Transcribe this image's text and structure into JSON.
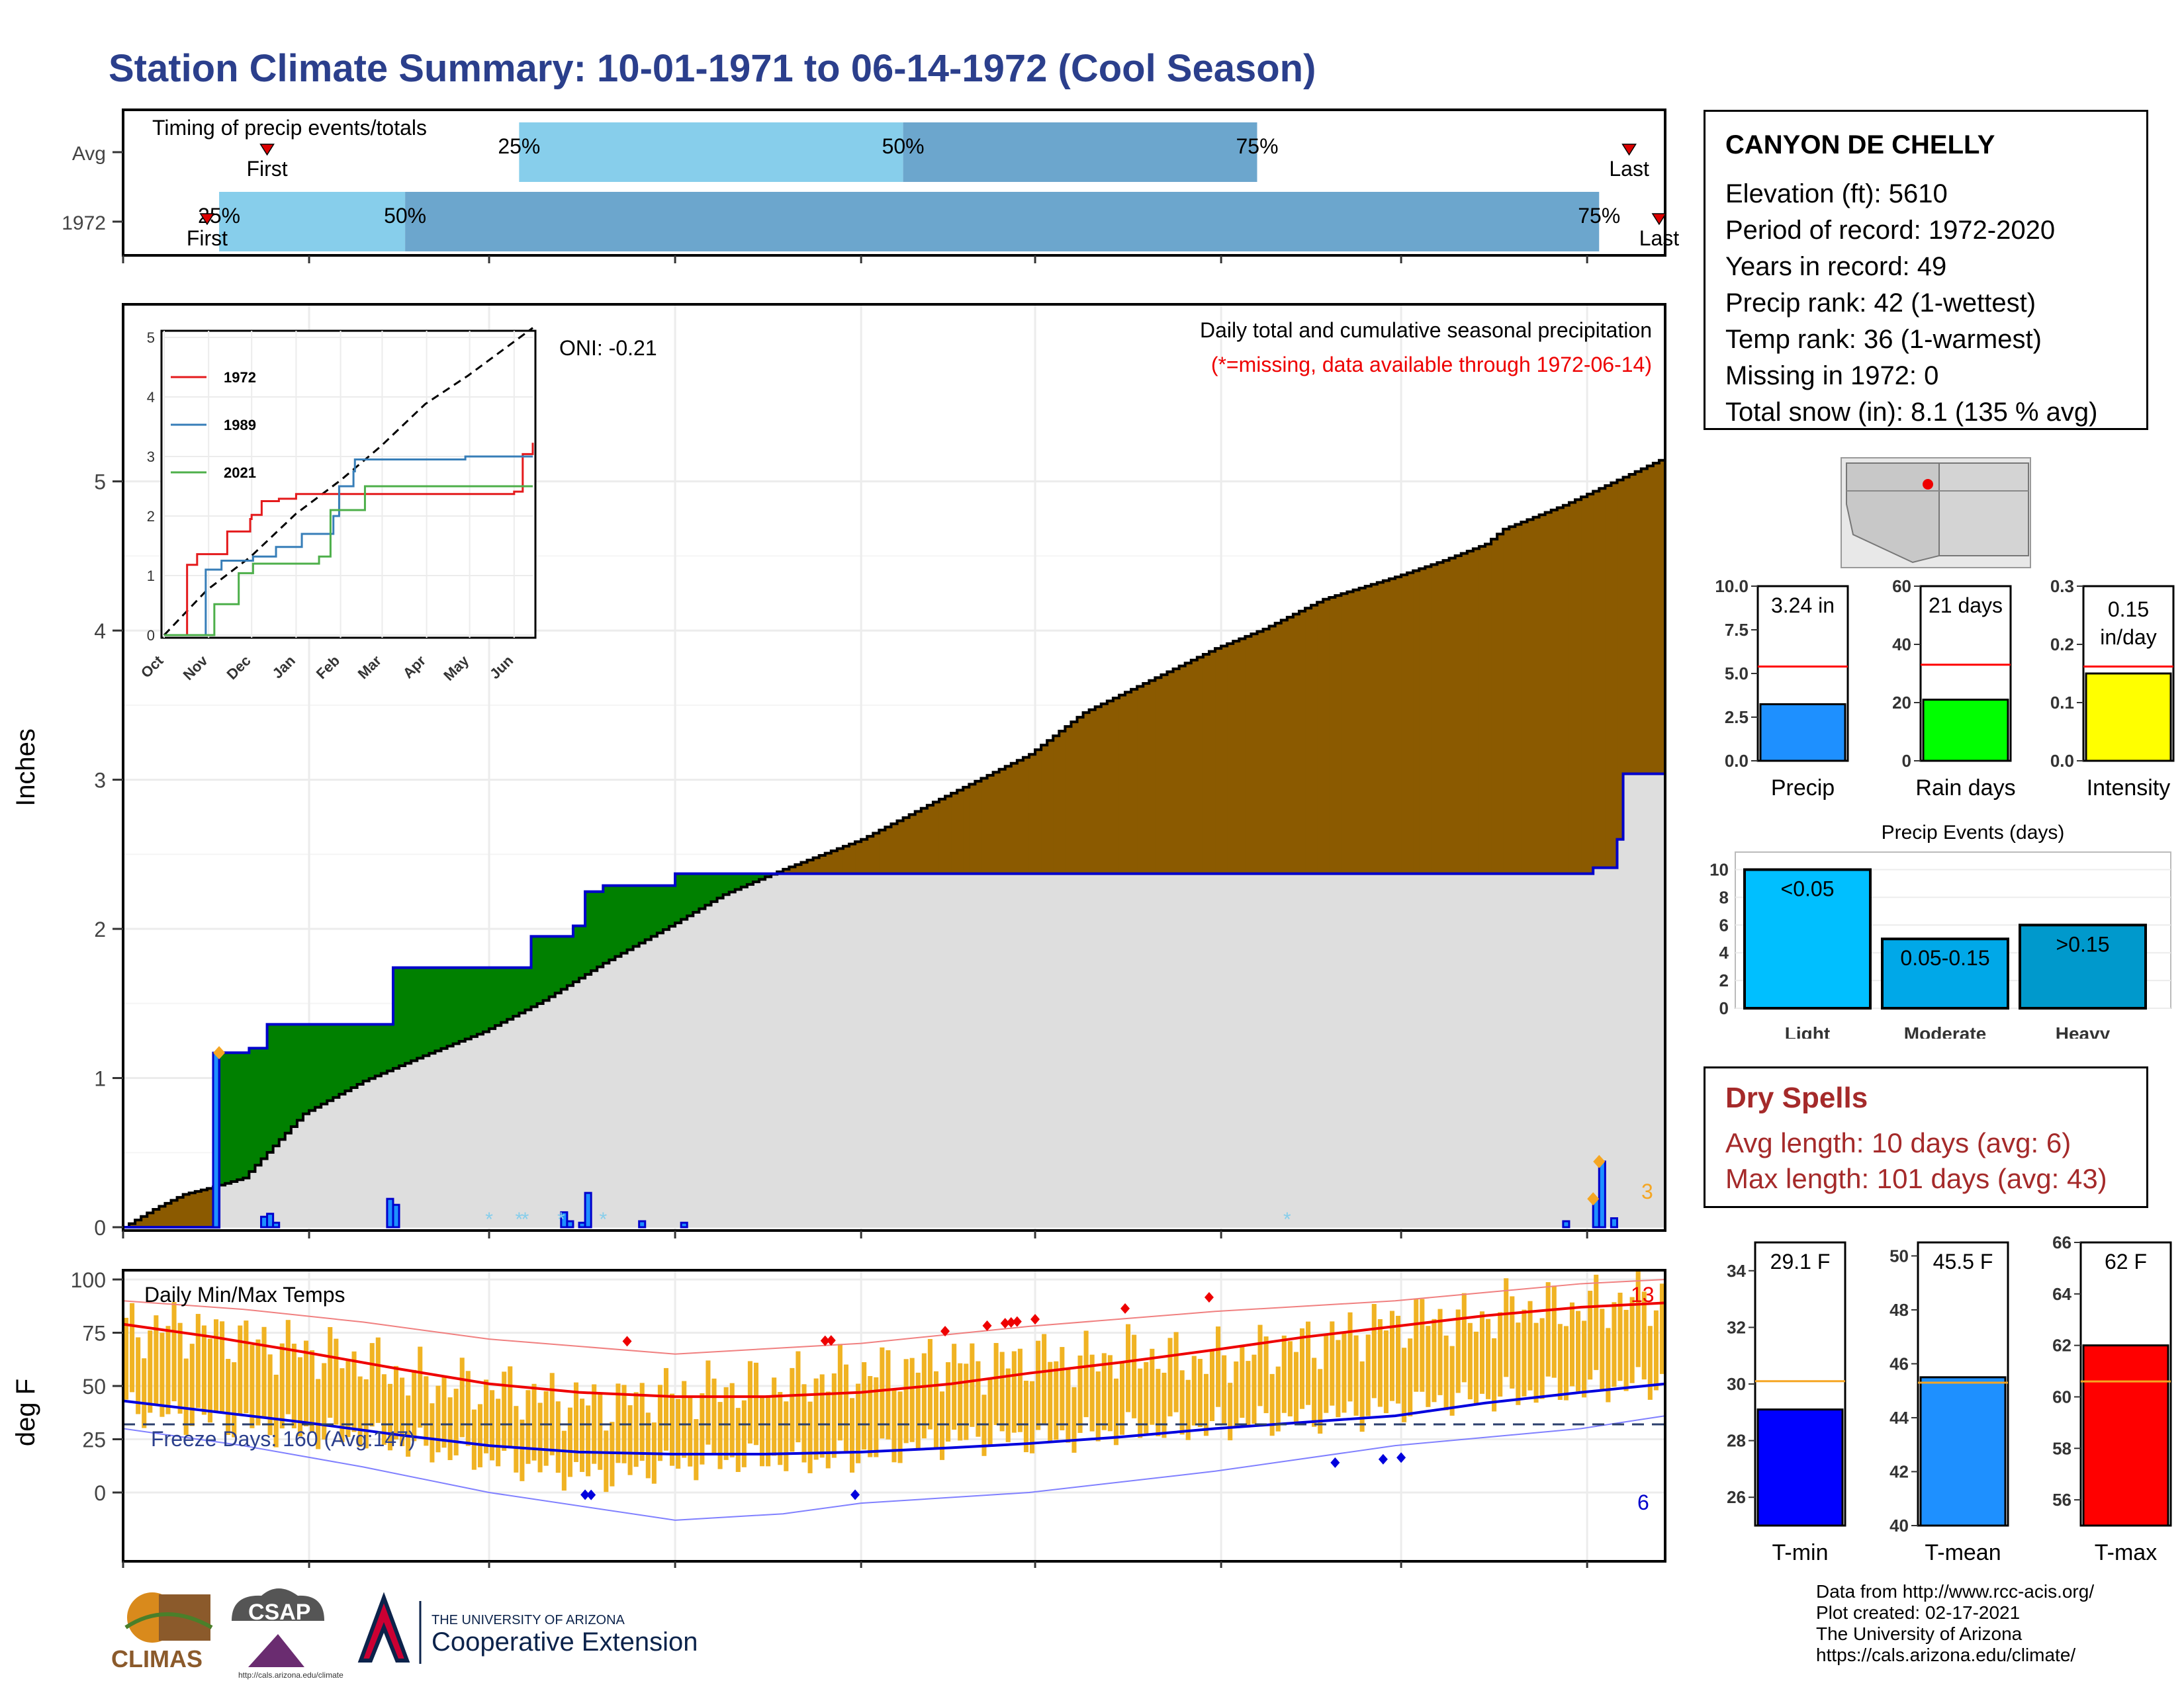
{
  "title": "Station Climate Summary: 10-01-1971 to 06-14-1972 (Cool Season)",
  "station": {
    "name": "CANYON DE CHELLY",
    "lines": [
      "Elevation (ft): 5610",
      "Period of record: 1972-2020",
      "Years in record: 49",
      "Precip rank: 42 (1-wettest)",
      "Temp rank: 36 (1-warmest)",
      "Missing in 1972: 0",
      "Total snow (in): 8.1 (135 % avg)"
    ]
  },
  "dry_spells": {
    "title": "Dry Spells",
    "avg": "Avg length: 10 days (avg: 6)",
    "max": "Max length: 101 days (avg: 43)"
  },
  "credits": [
    "Data from http://www.rcc-acis.org/",
    "Plot created: 02-17-2021",
    "The University of Arizona",
    "https://cals.arizona.edu/climate/"
  ],
  "logos": {
    "climas": "CLIMAS",
    "csap": "CSAP",
    "csap_url": "http://cals.arizona.edu/climate",
    "ua_top": "THE UNIVERSITY OF ARIZONA",
    "ua_bottom": "Cooperative Extension"
  },
  "colors": {
    "title": "#2b3f8c",
    "below_normal": "#8b5a00",
    "above_normal": "#008000",
    "observed_line": "#0000cc",
    "normal_fill": "#dedede",
    "light_blue": "#87ceeb",
    "mid_blue": "#6ca6cd",
    "temp_bar": "#f0b323",
    "dry_spell": "#a52a2a"
  },
  "chart_data": [
    {
      "type": "bar",
      "id": "timing",
      "title": "Timing of precip events/totals",
      "categories": [
        "Avg",
        "1972"
      ],
      "x_range": [
        "10-01",
        "06-14"
      ],
      "rows": [
        {
          "name": "Avg",
          "first": "10-25",
          "p25": "12-06",
          "p50": "02-08",
          "p75": "04-07",
          "last": "06-08"
        },
        {
          "name": "1972",
          "first": "10-15",
          "p25": "10-17",
          "p50": "11-17",
          "p75": "06-03",
          "last": "06-13"
        }
      ],
      "labels": {
        "first": "First",
        "last": "Last",
        "p25": "25%",
        "p50": "50%",
        "p75": "75%"
      }
    },
    {
      "type": "area",
      "id": "precip",
      "title": "Daily total and cumulative seasonal precipitation",
      "subtitle": "(*=missing, data available through 1972-06-14)",
      "ylabel": "Inches",
      "ylim": [
        0,
        5.5
      ],
      "yticks": [
        0,
        1,
        2,
        3,
        4,
        5
      ],
      "x_ticks": [
        "Oct",
        "Nov",
        "Dec",
        "Jan",
        "Feb",
        "Mar",
        "Apr",
        "May",
        "Jun"
      ],
      "oni": "ONI: -0.21",
      "count_label": "3",
      "normal_cumulative": {
        "day": [
          0,
          5,
          10,
          15,
          20,
          30,
          40,
          50,
          60,
          70,
          80,
          92,
          100,
          110,
          123,
          135,
          151,
          160,
          182,
          190,
          200,
          212,
          220,
          227,
          230,
          240,
          257
        ],
        "value": [
          0,
          0.12,
          0.22,
          0.27,
          0.33,
          0.76,
          0.98,
          1.15,
          1.31,
          1.52,
          1.77,
          2.04,
          2.23,
          2.4,
          2.6,
          2.85,
          3.17,
          3.45,
          3.88,
          4.01,
          4.21,
          4.36,
          4.47,
          4.58,
          4.68,
          4.84,
          5.16
        ]
      },
      "observed_cumulative": {
        "day": [
          0,
          15,
          16,
          18,
          21,
          23,
          24,
          30,
          44,
          45,
          60,
          67,
          68,
          73,
          75,
          77,
          80,
          92,
          130,
          203,
          241,
          245,
          246,
          249,
          250,
          257
        ],
        "value": [
          0,
          0,
          1.17,
          1.17,
          1.2,
          1.2,
          1.36,
          1.36,
          1.36,
          1.74,
          1.74,
          1.74,
          1.95,
          1.95,
          2.02,
          2.25,
          2.29,
          2.37,
          2.37,
          2.37,
          2.37,
          2.41,
          2.41,
          2.6,
          3.04,
          3.23
        ]
      },
      "daily_bars": {
        "day": [
          15,
          23,
          24,
          25,
          44,
          45,
          73,
          74,
          76,
          77,
          86,
          93,
          240,
          245,
          246,
          248
        ],
        "value": [
          1.17,
          0.07,
          0.09,
          0.03,
          0.19,
          0.15,
          0.1,
          0.04,
          0.03,
          0.23,
          0.04,
          0.03,
          0.04,
          0.19,
          0.44,
          0.06
        ]
      },
      "missing_marks_day": [
        61,
        66,
        67,
        73,
        80,
        194
      ],
      "event_markers": {
        "day": [
          16,
          245,
          246
        ],
        "value": [
          1.17,
          0.19,
          0.44
        ]
      }
    },
    {
      "type": "line",
      "id": "inset",
      "ylim": [
        0,
        5
      ],
      "yticks": [
        0,
        1,
        2,
        3,
        4,
        5
      ],
      "x_ticks": [
        "Oct",
        "Nov",
        "Dec",
        "Jan",
        "Feb",
        "Mar",
        "Apr",
        "May",
        "Jun"
      ],
      "series": [
        {
          "name": "1972",
          "color": "#e41a1c",
          "day": [
            0,
            5,
            15,
            16,
            23,
            30,
            44,
            45,
            60,
            61,
            67,
            68,
            80,
            92,
            243,
            244,
            250,
            257
          ],
          "value": [
            0,
            0,
            0,
            1.18,
            1.36,
            1.36,
            1.74,
            1.74,
            1.95,
            2.02,
            2.02,
            2.25,
            2.29,
            2.37,
            2.37,
            2.41,
            3.04,
            3.23
          ]
        },
        {
          "name": "1989",
          "color": "#377eb8",
          "day": [
            0,
            28,
            29,
            40,
            62,
            78,
            96,
            118,
            122,
            132,
            133,
            192,
            210,
            257
          ],
          "value": [
            0,
            0,
            1.1,
            1.25,
            1.32,
            1.48,
            1.7,
            2.0,
            2.5,
            2.75,
            2.95,
            2.95,
            3.0,
            3.0
          ]
        },
        {
          "name": "2021",
          "color": "#4daf4a",
          "day": [
            0,
            34,
            35,
            52,
            62,
            108,
            116,
            140,
            257
          ],
          "value": [
            0,
            0,
            0.52,
            1.04,
            1.2,
            1.32,
            2.1,
            2.5,
            2.5
          ]
        }
      ],
      "normal": {
        "day": [
          0,
          30,
          60,
          92,
          123,
          151,
          182,
          212,
          257
        ],
        "value": [
          0,
          0.76,
          1.31,
          2.04,
          2.6,
          3.17,
          3.88,
          4.36,
          5.16
        ]
      }
    },
    {
      "type": "line",
      "id": "temps",
      "title": "Daily Min/Max Temps",
      "ylabel": "deg F",
      "ylim": [
        -20,
        105
      ],
      "yticks": [
        0,
        25,
        50,
        75,
        100
      ],
      "x_ticks": [
        "Oct",
        "Nov",
        "Dec",
        "Jan",
        "Feb",
        "Mar",
        "Apr",
        "May",
        "Jun"
      ],
      "freeze_line": 32,
      "freeze_label": "Freeze Days: 160 (Avg:147)",
      "max_count_label": "13",
      "min_count_label": "6",
      "normal_max": {
        "day": [
          0,
          15,
          30,
          46,
          61,
          76,
          92,
          107,
          123,
          138,
          151,
          166,
          182,
          197,
          212,
          227,
          243,
          257
        ],
        "value": [
          79,
          73,
          66,
          58,
          51,
          47,
          45,
          45,
          47,
          51,
          56,
          61,
          67,
          73,
          78,
          83,
          87,
          89
        ]
      },
      "normal_min": {
        "day": [
          0,
          15,
          30,
          46,
          61,
          76,
          92,
          107,
          123,
          138,
          151,
          166,
          182,
          197,
          212,
          227,
          243,
          257
        ],
        "value": [
          43,
          38,
          33,
          27,
          22,
          19,
          18,
          18,
          19,
          21,
          23,
          26,
          30,
          33,
          36,
          42,
          47,
          51
        ]
      },
      "record_max": {
        "day": [
          0,
          20,
          40,
          61,
          92,
          123,
          151,
          182,
          212,
          243,
          257
        ],
        "value": [
          90,
          86,
          80,
          72,
          65,
          70,
          78,
          85,
          90,
          98,
          100
        ]
      },
      "record_min": {
        "day": [
          0,
          20,
          40,
          61,
          92,
          110,
          123,
          151,
          182,
          212,
          243,
          257
        ],
        "value": [
          30,
          22,
          12,
          0,
          -13,
          -10,
          -5,
          0,
          10,
          22,
          30,
          36
        ]
      },
      "daily_range": {
        "day": [
          0,
          8,
          16,
          24,
          32,
          40,
          48,
          56,
          64,
          72,
          80,
          88,
          96,
          104,
          112,
          120,
          128,
          136,
          144,
          152,
          160,
          168,
          176,
          184,
          192,
          200,
          208,
          216,
          224,
          232,
          240,
          248,
          256
        ],
        "min": [
          40,
          36,
          34,
          30,
          28,
          26,
          22,
          18,
          14,
          10,
          8,
          12,
          14,
          16,
          15,
          16,
          20,
          24,
          26,
          25,
          27,
          30,
          30,
          32,
          34,
          36,
          38,
          42,
          44,
          46,
          48,
          50,
          52
        ],
        "max": [
          76,
          78,
          74,
          70,
          66,
          62,
          54,
          50,
          48,
          44,
          42,
          46,
          48,
          50,
          52,
          56,
          58,
          62,
          60,
          64,
          62,
          66,
          62,
          64,
          68,
          72,
          78,
          82,
          80,
          88,
          86,
          90,
          92
        ]
      },
      "record_high_markers_day": [
        84,
        117,
        118,
        137,
        144,
        147,
        148,
        149,
        152,
        167,
        181
      ],
      "record_low_markers_day": [
        77,
        78,
        122,
        202,
        210,
        213
      ]
    },
    {
      "type": "bar",
      "id": "precip-stats",
      "categories": [
        "Precip",
        "Rain days",
        "Intensity"
      ],
      "values": [
        3.24,
        21,
        0.15
      ],
      "averages": [
        5.4,
        33,
        0.162
      ],
      "value_labels": [
        "3.24 in",
        "21 days",
        "0.15 in/day"
      ],
      "ylims": [
        [
          0,
          10
        ],
        [
          0,
          60
        ],
        [
          0,
          0.3
        ]
      ],
      "yticks": [
        [
          "0.0",
          "2.5",
          "5.0",
          "7.5",
          "10.0"
        ],
        [
          "0",
          "20",
          "40",
          "60"
        ],
        [
          "0.0",
          "0.1",
          "0.2",
          "0.3"
        ]
      ],
      "colors": [
        "#1e90ff",
        "#00ff00",
        "#ffff00"
      ]
    },
    {
      "type": "bar",
      "id": "precip-events",
      "title": "Precip Events (days)",
      "categories": [
        "Light",
        "Moderate",
        "Heavy"
      ],
      "values": [
        10,
        5,
        6
      ],
      "labels": [
        "<0.05",
        "0.05-0.15",
        ">0.15"
      ],
      "ylim": [
        0,
        10.5
      ],
      "yticks": [
        0,
        2,
        4,
        6,
        8,
        10
      ],
      "colors": [
        "#00bfff",
        "#00a8e8",
        "#0099cc"
      ]
    },
    {
      "type": "bar",
      "id": "temp-stats",
      "categories": [
        "T-min",
        "T-mean",
        "T-max"
      ],
      "values": [
        29.1,
        45.5,
        62
      ],
      "averages": [
        30.1,
        45.3,
        60.6
      ],
      "value_labels": [
        "29.1 F",
        "45.5 F",
        "62 F"
      ],
      "ylims": [
        [
          25,
          35
        ],
        [
          40,
          50.5
        ],
        [
          55,
          66
        ]
      ],
      "yticks": [
        [
          26,
          28,
          30,
          32,
          34
        ],
        [
          40,
          42,
          44,
          46,
          48,
          50
        ],
        [
          56,
          58,
          60,
          62,
          64,
          66
        ]
      ],
      "colors": [
        "#0000ff",
        "#1e90ff",
        "#ff0000"
      ]
    }
  ]
}
